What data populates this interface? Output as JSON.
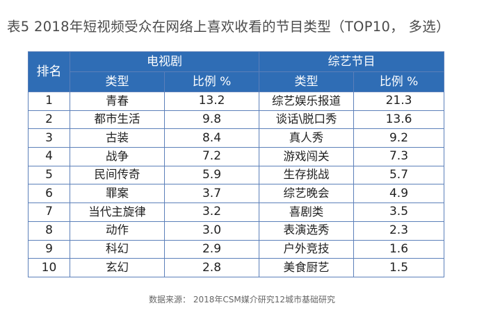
{
  "title": "表5  2018年短视频受众在网络上喜欢收看的节目类型（TOP10， 多选）",
  "header": {
    "rank": "排名",
    "group_tv": "电视剧",
    "group_variety": "综艺节目",
    "tv_type": "类型",
    "tv_ratio": "比例 %",
    "variety_type": "类型",
    "variety_ratio": "比例 %"
  },
  "rows": [
    {
      "rank": "1",
      "tv_type": "青春",
      "tv_ratio": "13.2",
      "variety_type": "综艺娱乐报道",
      "variety_ratio": "21.3"
    },
    {
      "rank": "2",
      "tv_type": "都市生活",
      "tv_ratio": "9.8",
      "variety_type": "谈话\\脱口秀",
      "variety_ratio": "13.6"
    },
    {
      "rank": "3",
      "tv_type": "古装",
      "tv_ratio": "8.4",
      "variety_type": "真人秀",
      "variety_ratio": "9.2"
    },
    {
      "rank": "4",
      "tv_type": "战争",
      "tv_ratio": "7.2",
      "variety_type": "游戏闯关",
      "variety_ratio": "7.3"
    },
    {
      "rank": "5",
      "tv_type": "民间传奇",
      "tv_ratio": "5.9",
      "variety_type": "生存挑战",
      "variety_ratio": "5.7"
    },
    {
      "rank": "6",
      "tv_type": "罪案",
      "tv_ratio": "3.7",
      "variety_type": "综艺晚会",
      "variety_ratio": "4.9"
    },
    {
      "rank": "7",
      "tv_type": "当代主旋律",
      "tv_ratio": "3.2",
      "variety_type": "喜剧类",
      "variety_ratio": "3.5"
    },
    {
      "rank": "8",
      "tv_type": "动作",
      "tv_ratio": "3.0",
      "variety_type": "表演选秀",
      "variety_ratio": "2.3"
    },
    {
      "rank": "9",
      "tv_type": "科幻",
      "tv_ratio": "2.9",
      "variety_type": "户外竞技",
      "variety_ratio": "1.6"
    },
    {
      "rank": "10",
      "tv_type": "玄幻",
      "tv_ratio": "2.8",
      "variety_type": "美食厨艺",
      "variety_ratio": "1.5"
    }
  ],
  "footer": "数据来源：  2018年CSM媒介研究12城市基础研究",
  "colors": {
    "header_bg": "#2f6db5",
    "border": "#5b7fb9",
    "title_text": "#4a4a4a"
  }
}
